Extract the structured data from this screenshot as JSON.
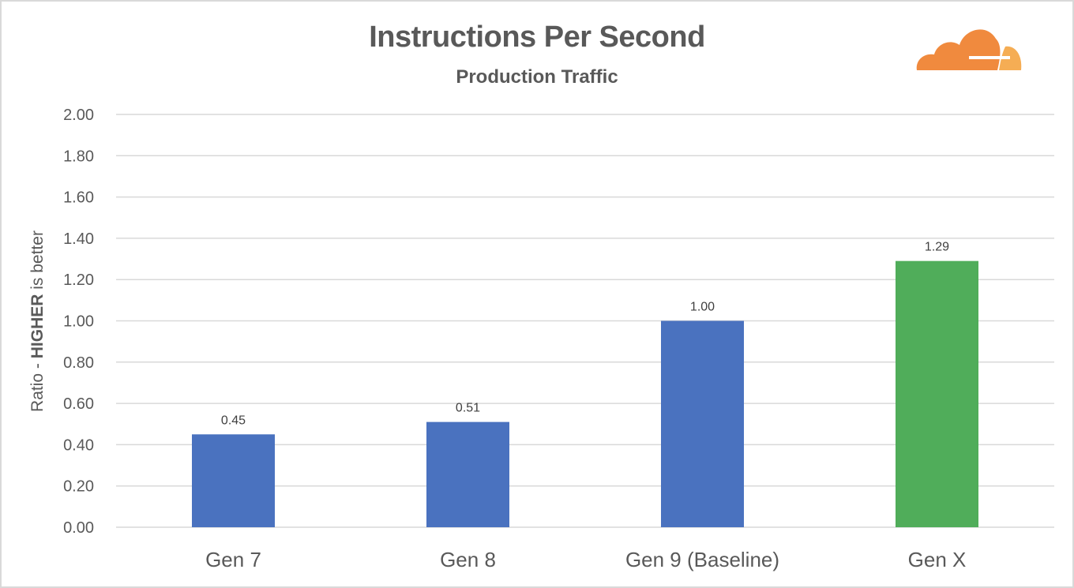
{
  "chart_data": {
    "type": "bar",
    "title": "Instructions Per Second",
    "subtitle": "Production Traffic",
    "ylabel": {
      "prefix": "Ratio - ",
      "emphasis": "HIGHER",
      "suffix": " is better"
    },
    "xlabel": "",
    "categories": [
      "Gen 7",
      "Gen 8",
      "Gen 9 (Baseline)",
      "Gen X"
    ],
    "values": [
      0.45,
      0.51,
      1.0,
      1.29
    ],
    "value_labels": [
      "0.45",
      "0.51",
      "1.00",
      "1.29"
    ],
    "bar_colors": [
      "#4a72bf",
      "#4a72bf",
      "#4a72bf",
      "#50ad5a"
    ],
    "ylim": [
      0,
      2.0
    ],
    "yticks": [
      "0.00",
      "0.20",
      "0.40",
      "0.60",
      "0.80",
      "1.00",
      "1.20",
      "1.40",
      "1.60",
      "1.80",
      "2.00"
    ],
    "grid": true,
    "legend": "none"
  },
  "colors": {
    "grid": "#d9d9d9",
    "text": "#595959",
    "logo_primary": "#f08a3e",
    "logo_secondary": "#f5ad54"
  },
  "icons": {
    "logo": "cloudflare-cloud-logo"
  }
}
